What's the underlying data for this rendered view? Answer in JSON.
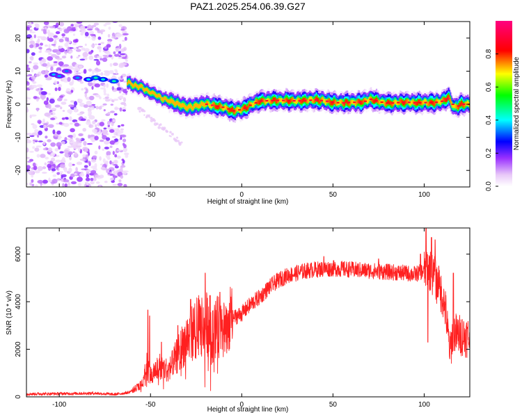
{
  "title": "PAZ1.2025.254.06.39.G27",
  "chart_data": [
    {
      "type": "heatmap",
      "title": "PAZ1.2025.254.06.39.G27",
      "xlabel": "Height of straight line (km)",
      "ylabel": "Frequency (Hz)",
      "xlim": [
        -118,
        125
      ],
      "ylim": [
        -25,
        25
      ],
      "xticks": [
        -100,
        -50,
        0,
        50,
        100
      ],
      "yticks": [
        -20,
        -10,
        0,
        10,
        20
      ],
      "colorbar": {
        "label": "Normalized spectral amplitude",
        "range": [
          0,
          1
        ],
        "ticks": [
          "0.0",
          "0.2",
          "0.4",
          "0.6",
          "0.8"
        ],
        "colors": [
          "#ffffff",
          "#e8c8f8",
          "#9a30ff",
          "#0000ff",
          "#00ffff",
          "#00ff00",
          "#ffff00",
          "#ff0000",
          "#ff0080"
        ]
      },
      "ridge": {
        "height_km": [
          -63,
          -58,
          -55,
          -52,
          -48,
          -45,
          -40,
          -35,
          -30,
          -25,
          -20,
          -15,
          -10,
          -5,
          0,
          5,
          10,
          20,
          30,
          40,
          45,
          50,
          55,
          60,
          65,
          70,
          75,
          80,
          85,
          90,
          95,
          100,
          105,
          110,
          113,
          116,
          120,
          125
        ],
        "frequency_hz": [
          6.5,
          5.5,
          5,
          4,
          3,
          2,
          1,
          0,
          -1,
          -0.5,
          0,
          -0.5,
          -1,
          -2,
          -1.5,
          0,
          1,
          1.2,
          1,
          1.3,
          1,
          0.5,
          0.4,
          0.6,
          0.5,
          1.5,
          0.7,
          0.3,
          0.5,
          0.6,
          0.4,
          0.5,
          0.5,
          1,
          2,
          -1,
          0,
          0
        ]
      },
      "noise_region_km": [
        -118,
        -63
      ]
    },
    {
      "type": "line",
      "xlabel": "Height of straight line (km)",
      "ylabel": "SNR (10 * v/v)",
      "xlim": [
        -118,
        125
      ],
      "ylim": [
        0,
        7100
      ],
      "xticks": [
        -100,
        -50,
        0,
        50,
        100
      ],
      "yticks": [
        0,
        2000,
        4000,
        6000
      ],
      "color": "#ff2020",
      "envelope": {
        "height_km": [
          -118,
          -80,
          -70,
          -62,
          -55,
          -52,
          -50,
          -45,
          -40,
          -35,
          -30,
          -25,
          -20,
          -15,
          -10,
          -5,
          0,
          5,
          10,
          15,
          20,
          25,
          30,
          35,
          40,
          50,
          60,
          70,
          80,
          90,
          95,
          100,
          102,
          104,
          106,
          108,
          110,
          112,
          114,
          116,
          118,
          120,
          125
        ],
        "snr": [
          120,
          150,
          100,
          180,
          500,
          1500,
          900,
          1300,
          1100,
          1800,
          2500,
          2900,
          3100,
          2900,
          3000,
          3300,
          3500,
          3900,
          4200,
          4600,
          4900,
          5100,
          5200,
          5300,
          5350,
          5400,
          5350,
          5300,
          5250,
          5200,
          5150,
          5300,
          5500,
          5200,
          5000,
          4500,
          4300,
          3500,
          1800,
          2800,
          2600,
          2600,
          2500
        ]
      },
      "spikes": [
        {
          "height_km": -51.5,
          "snr": 3650
        },
        {
          "height_km": -50.5,
          "snr": 3400
        },
        {
          "height_km": -44,
          "snr": 2300
        },
        {
          "height_km": -35,
          "snr": 3000
        },
        {
          "height_km": -28,
          "snr": 4100
        },
        {
          "height_km": -20,
          "snr": 5200
        },
        {
          "height_km": -12,
          "snr": 4400
        },
        {
          "height_km": -6,
          "snr": 4200
        },
        {
          "height_km": 45,
          "snr": 5900
        },
        {
          "height_km": 75,
          "snr": 5800
        },
        {
          "height_km": 98,
          "snr": 6000
        },
        {
          "height_km": 101,
          "snr": 7100
        },
        {
          "height_km": 102,
          "snr": 2300
        },
        {
          "height_km": 104,
          "snr": 6700
        },
        {
          "height_km": 106,
          "snr": 6600
        },
        {
          "height_km": 108,
          "snr": 5500
        },
        {
          "height_km": 114,
          "snr": 1600
        },
        {
          "height_km": 116,
          "snr": 5200
        }
      ]
    }
  ]
}
